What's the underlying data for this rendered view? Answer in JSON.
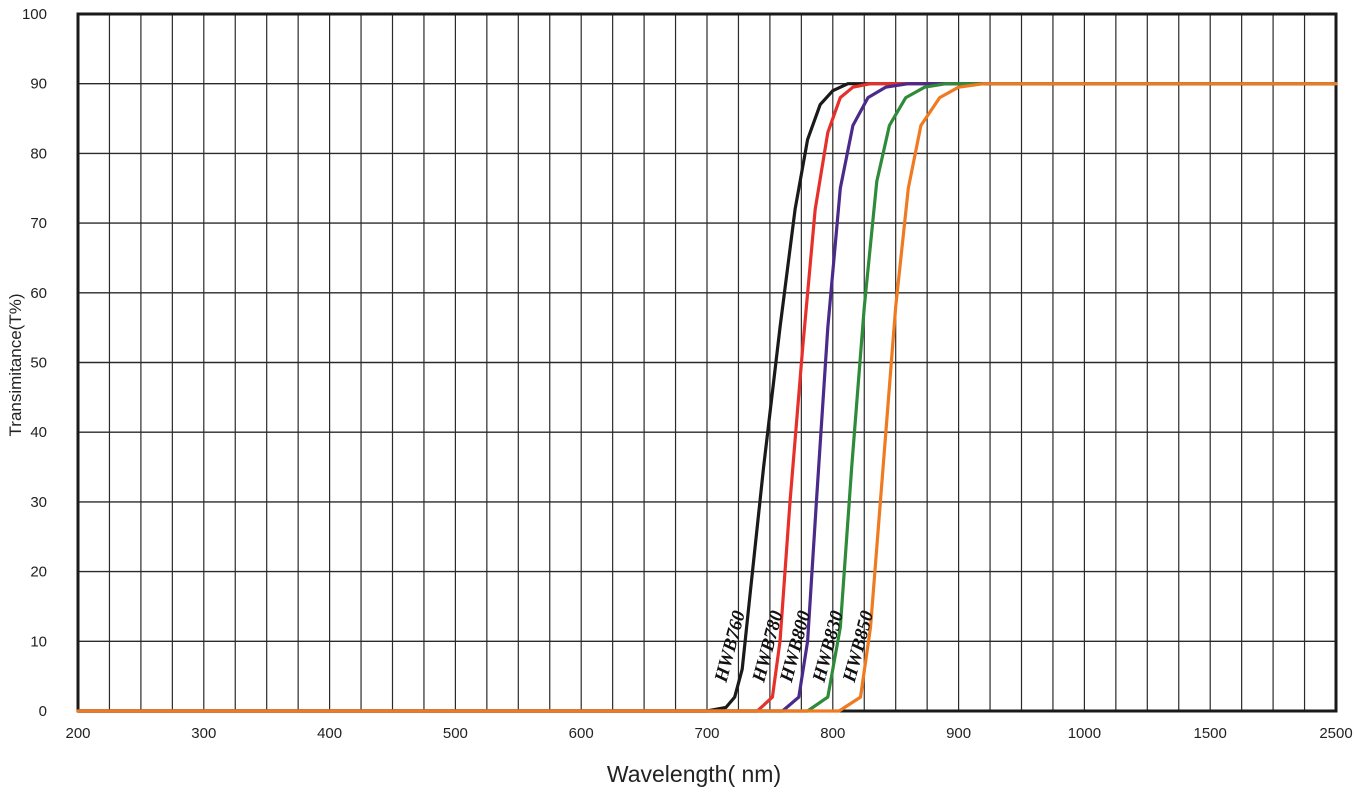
{
  "chart_data": {
    "type": "line",
    "xlabel": "Wavelength( nm)",
    "ylabel": "Transimitance(T%)",
    "y_ticks": [
      "0",
      "10",
      "20",
      "30",
      "40",
      "50",
      "60",
      "70",
      "80",
      "90",
      "100"
    ],
    "x_ticks": [
      "200",
      "300",
      "400",
      "500",
      "600",
      "700",
      "800",
      "900",
      "1000",
      "1500",
      "2500"
    ],
    "ylim": [
      0,
      100
    ],
    "x_scale": "piecewise (200–1000 linear, then 1000, 1500, 2500 evenly spaced)",
    "grid": true,
    "series": [
      {
        "name": "HWB760",
        "color": "#1a1a1a",
        "points": [
          [
            200,
            0
          ],
          [
            700,
            0
          ],
          [
            715,
            0.5
          ],
          [
            722,
            2
          ],
          [
            728,
            6
          ],
          [
            735,
            18
          ],
          [
            745,
            35
          ],
          [
            758,
            55
          ],
          [
            770,
            72
          ],
          [
            780,
            82
          ],
          [
            790,
            87
          ],
          [
            800,
            89
          ],
          [
            812,
            90
          ],
          [
            2500,
            90
          ]
        ]
      },
      {
        "name": "HWB780",
        "color": "#e8302a",
        "points": [
          [
            200,
            0
          ],
          [
            740,
            0
          ],
          [
            752,
            2
          ],
          [
            758,
            10
          ],
          [
            766,
            30
          ],
          [
            776,
            52
          ],
          [
            786,
            72
          ],
          [
            796,
            83
          ],
          [
            806,
            88
          ],
          [
            816,
            89.5
          ],
          [
            830,
            90
          ],
          [
            2500,
            90
          ]
        ]
      },
      {
        "name": "HWB800",
        "color": "#4a2a8a",
        "points": [
          [
            200,
            0
          ],
          [
            760,
            0
          ],
          [
            773,
            2
          ],
          [
            780,
            10
          ],
          [
            787,
            30
          ],
          [
            796,
            55
          ],
          [
            806,
            75
          ],
          [
            816,
            84
          ],
          [
            828,
            88
          ],
          [
            842,
            89.5
          ],
          [
            860,
            90
          ],
          [
            2500,
            90
          ]
        ]
      },
      {
        "name": "HWB830",
        "color": "#2e8b3a",
        "points": [
          [
            200,
            0
          ],
          [
            780,
            0
          ],
          [
            796,
            2
          ],
          [
            806,
            12
          ],
          [
            815,
            35
          ],
          [
            825,
            58
          ],
          [
            835,
            76
          ],
          [
            845,
            84
          ],
          [
            858,
            88
          ],
          [
            873,
            89.5
          ],
          [
            890,
            90
          ],
          [
            2500,
            90
          ]
        ]
      },
      {
        "name": "HWB850",
        "color": "#f07a20",
        "points": [
          [
            200,
            0
          ],
          [
            805,
            0
          ],
          [
            822,
            2
          ],
          [
            830,
            12
          ],
          [
            840,
            35
          ],
          [
            850,
            58
          ],
          [
            860,
            75
          ],
          [
            870,
            84
          ],
          [
            885,
            88
          ],
          [
            900,
            89.5
          ],
          [
            920,
            90
          ],
          [
            2500,
            90
          ]
        ]
      }
    ]
  }
}
